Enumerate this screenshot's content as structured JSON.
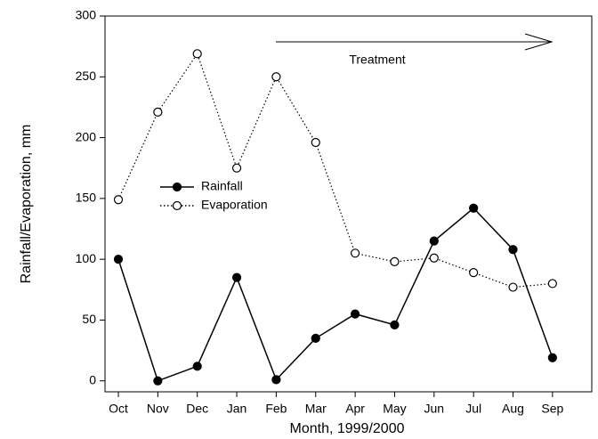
{
  "chart_data": {
    "type": "line",
    "xlabel": "Month, 1999/2000",
    "ylabel": "Rainfall/Evaporation, mm",
    "annotation": "Treatment",
    "categories": [
      "Oct",
      "Nov",
      "Dec",
      "Jan",
      "Feb",
      "Mar",
      "Apr",
      "May",
      "Jun",
      "Jul",
      "Aug",
      "Sep"
    ],
    "series": [
      {
        "name": "Rainfall",
        "color": "#000000",
        "style": "solid",
        "marker": "filled",
        "values": [
          100,
          0,
          12,
          85,
          1,
          35,
          55,
          46,
          115,
          142,
          108,
          19
        ]
      },
      {
        "name": "Evaporation",
        "color": "#000000",
        "style": "dotted",
        "marker": "open",
        "values": [
          149,
          221,
          269,
          175,
          250,
          196,
          105,
          98,
          101,
          89,
          77,
          80
        ]
      }
    ],
    "ylim": [
      -9,
      300
    ],
    "yticks": [
      0,
      50,
      100,
      150,
      200,
      250,
      300
    ]
  }
}
